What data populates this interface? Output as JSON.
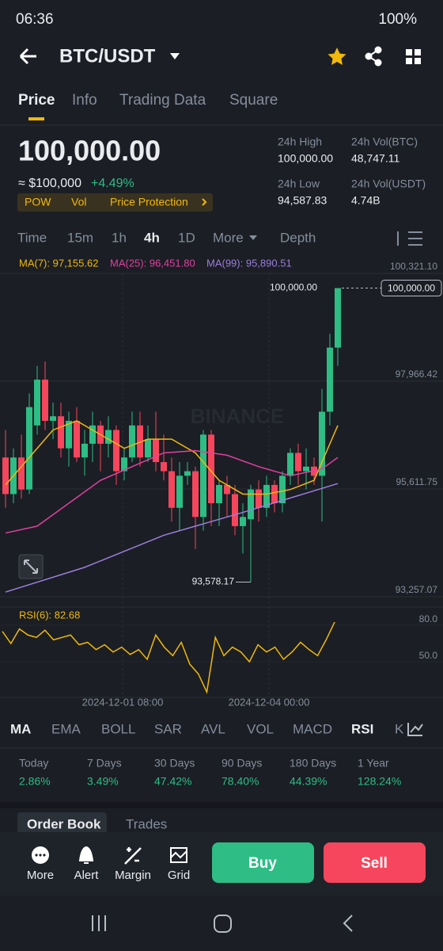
{
  "status": {
    "time": "06:36",
    "battery": "100%"
  },
  "header": {
    "pair": "BTC/USDT"
  },
  "tabs": [
    "Price",
    "Info",
    "Trading Data",
    "Square"
  ],
  "price": {
    "last": "100,000.00",
    "fiat": "≈ $100,000",
    "change": "+4.49%",
    "badges": [
      "POW",
      "Vol",
      "Price Protection"
    ],
    "stats": [
      {
        "label": "24h High",
        "value": "100,000.00"
      },
      {
        "label": "24h Vol(BTC)",
        "value": "48,747.11"
      },
      {
        "label": "24h Low",
        "value": "94,587.83"
      },
      {
        "label": "24h Vol(USDT)",
        "value": "4.74B"
      }
    ]
  },
  "intervals": [
    "Time",
    "15m",
    "1h",
    "4h",
    "1D",
    "More",
    "Depth"
  ],
  "chart": {
    "type": "candlestick",
    "ma_legend": [
      "MA(7): 97,155.62",
      "MA(25): 96,451.80",
      "MA(99): 95,890.51"
    ],
    "ylim": [
      93257.07,
      100321.1
    ],
    "yticks": [
      {
        "value": 100321.1,
        "label": "100,321.10"
      },
      {
        "value": 97966.42,
        "label": "97,966.42"
      },
      {
        "value": 95611.75,
        "label": "95,611.75"
      },
      {
        "value": 93257.07,
        "label": "93,257.07"
      }
    ],
    "open": [
      96300,
      95500,
      96300,
      95600,
      97000,
      98000,
      97100,
      97200,
      96500,
      97100,
      96300,
      96600,
      97000,
      96600,
      96900,
      96000,
      96300,
      97000,
      96300,
      96700,
      96200,
      96000,
      95200,
      95900,
      96000,
      95000,
      96800,
      95300,
      95700,
      95500,
      94800,
      94950,
      95600,
      95200,
      95700,
      95300,
      95900,
      96400,
      96000,
      96100,
      95900,
      97300,
      98700
    ],
    "high": [
      96900,
      96500,
      96800,
      97700,
      98300,
      98400,
      97500,
      97500,
      97300,
      97400,
      96900,
      97300,
      97100,
      97200,
      97000,
      96500,
      97300,
      97300,
      97000,
      97300,
      96800,
      96300,
      96200,
      96200,
      96100,
      96900,
      96900,
      95800,
      95900,
      95700,
      95300,
      95700,
      95800,
      95900,
      95800,
      96000,
      96500,
      96600,
      96500,
      96300,
      97800,
      99000,
      100000
    ],
    "low": [
      95200,
      95300,
      95400,
      95500,
      96800,
      96900,
      96700,
      96300,
      96100,
      96200,
      95900,
      96200,
      96000,
      96300,
      95700,
      95800,
      96200,
      96100,
      96200,
      96000,
      95800,
      94900,
      94700,
      95700,
      94300,
      94700,
      94800,
      94800,
      95000,
      94600,
      94200,
      93578.17,
      94900,
      95000,
      95100,
      95100,
      95700,
      95700,
      95600,
      95700,
      94900,
      97000,
      98300
    ],
    "close": [
      95500,
      96300,
      95600,
      97400,
      98000,
      97100,
      97200,
      96500,
      97100,
      96300,
      96600,
      97000,
      96600,
      96900,
      96000,
      96300,
      97000,
      96300,
      96700,
      96200,
      96000,
      95200,
      95900,
      96000,
      95000,
      96800,
      95300,
      95700,
      95500,
      94800,
      95000,
      95600,
      95200,
      95700,
      95300,
      95900,
      96400,
      96000,
      96100,
      95900,
      97300,
      98700,
      100000
    ],
    "ma": [
      {
        "name": "MA(7)",
        "color": "#f0b90b",
        "x": [
          0,
          3,
          6,
          9,
          12,
          15,
          18,
          21,
          24,
          27,
          30,
          33,
          36,
          39,
          42
        ],
        "values": [
          95700,
          96300,
          96900,
          97100,
          96800,
          96500,
          96700,
          96700,
          96400,
          95800,
          95500,
          95500,
          95600,
          95800,
          97000
        ]
      },
      {
        "name": "MA(25)",
        "color": "#e040a0",
        "x": [
          0,
          4,
          8,
          12,
          16,
          20,
          24,
          28,
          32,
          36,
          40,
          42
        ],
        "values": [
          94650,
          94800,
          95300,
          95800,
          96100,
          96400,
          96450,
          96350,
          96100,
          95900,
          96050,
          96300
        ]
      },
      {
        "name": "MA(99)",
        "color": "#9b7ede",
        "x": [
          0,
          10,
          20,
          30,
          42
        ],
        "values": [
          93360,
          93900,
          94600,
          95100,
          95730
        ]
      }
    ],
    "up_color": "#2ebd85",
    "down_color": "#f6465d",
    "last_price_label": "100,000.00",
    "high_label": "100,000.00",
    "low_label": "93,578.17",
    "watermark": "BINANCE",
    "x_labels": [
      "2024-12-01 08:00",
      "2024-12-04 00:00"
    ],
    "rsi": {
      "label": "RSI(6): 82.68",
      "color": "#f0b90b",
      "yticks": [
        {
          "value": 80,
          "label": "80.0"
        },
        {
          "value": 50,
          "label": "50.0"
        }
      ],
      "values": [
        75,
        65,
        77,
        72,
        70,
        76,
        68,
        70,
        72,
        64,
        66,
        60,
        64,
        58,
        62,
        56,
        60,
        52,
        72,
        62,
        55,
        66,
        48,
        40,
        25,
        70,
        55,
        62,
        58,
        50,
        64,
        58,
        62,
        52,
        58,
        66,
        60,
        55,
        68,
        82.68
      ]
    }
  },
  "indicators": [
    "MA",
    "EMA",
    "BOLL",
    "SAR",
    "AVL",
    "VOL",
    "MACD",
    "RSI",
    "K"
  ],
  "performance": [
    {
      "period": "Today",
      "value": "2.86%"
    },
    {
      "period": "7 Days",
      "value": "3.49%"
    },
    {
      "period": "30 Days",
      "value": "47.42%"
    },
    {
      "period": "90 Days",
      "value": "78.40%"
    },
    {
      "period": "180 Days",
      "value": "44.39%"
    },
    {
      "period": "1 Year",
      "value": "128.24%"
    }
  ],
  "book_tabs": [
    "Order Book",
    "Trades"
  ],
  "actions": [
    "More",
    "Alert",
    "Margin",
    "Grid"
  ],
  "buy": "Buy",
  "sell": "Sell"
}
